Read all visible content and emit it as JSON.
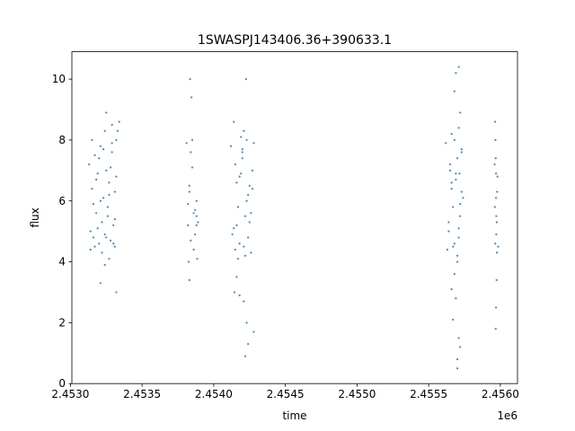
{
  "chart_data": {
    "type": "scatter",
    "title": "1SWASPJ143406.36+390633.1",
    "xlabel": "time",
    "ylabel": "flux",
    "x_offset_label": "1e6",
    "xlim": [
      2453010,
      2456120
    ],
    "ylim": [
      0,
      10.9
    ],
    "grid": false,
    "legend": "none",
    "marker_color": "#1f77b4",
    "x_ticks": [
      {
        "value": 2453000,
        "label": "2.4530"
      },
      {
        "value": 2453500,
        "label": "2.4535"
      },
      {
        "value": 2454000,
        "label": "2.4540"
      },
      {
        "value": 2454500,
        "label": "2.4545"
      },
      {
        "value": 2455000,
        "label": "2.4550"
      },
      {
        "value": 2455500,
        "label": "2.4555"
      },
      {
        "value": 2456000,
        "label": "2.4560"
      }
    ],
    "y_ticks": [
      {
        "value": 0,
        "label": "0"
      },
      {
        "value": 2,
        "label": "2"
      },
      {
        "value": 4,
        "label": "4"
      },
      {
        "value": 6,
        "label": "6"
      },
      {
        "value": 8,
        "label": "8"
      },
      {
        "value": 10,
        "label": "10"
      }
    ],
    "series": [
      {
        "x": [
          2453130,
          2453140,
          2453150,
          2453160,
          2453170,
          2453180,
          2453190,
          2453200,
          2453210,
          2453220,
          2453230,
          2453240,
          2453250,
          2453260,
          2453270,
          2453280,
          2453290,
          2453300,
          2453310,
          2453320,
          2453140,
          2453160,
          2453180,
          2453200,
          2453220,
          2453240,
          2453260,
          2453280,
          2453300,
          2453320,
          2453150,
          2453170,
          2453190,
          2453210,
          2453230,
          2453250,
          2453270,
          2453290,
          2453310,
          2453250,
          2453270,
          2453290,
          2453310,
          2453240,
          2453330,
          2453210,
          2453320,
          2453340,
          2453810,
          2453820,
          2453830,
          2453840,
          2453850,
          2453860,
          2453870,
          2453880,
          2453820,
          2453840,
          2453860,
          2453880,
          2453830,
          2453850,
          2453870,
          2453845,
          2453835,
          2453880,
          2453890,
          2453885,
          2453830,
          2453825,
          2454120,
          2454140,
          2454160,
          2454180,
          2454200,
          2454220,
          2454240,
          2454260,
          2454280,
          2454130,
          2454150,
          2454170,
          2454190,
          2454210,
          2454230,
          2454250,
          2454270,
          2454140,
          2454170,
          2454200,
          2454230,
          2454260,
          2454150,
          2454180,
          2454210,
          2454240,
          2454270,
          2454160,
          2454190,
          2454220,
          2454250,
          2454200,
          2454230,
          2454180,
          2454160,
          2454280,
          2454240,
          2454220,
          2454225,
          2454145,
          2454210,
          2455620,
          2455640,
          2455660,
          2455680,
          2455700,
          2455720,
          2455740,
          2455630,
          2455650,
          2455670,
          2455690,
          2455710,
          2455730,
          2455640,
          2455660,
          2455680,
          2455700,
          2455720,
          2455650,
          2455670,
          2455690,
          2455710,
          2455730,
          2455660,
          2455700,
          2455680,
          2455690,
          2455670,
          2455710,
          2455720,
          2455700,
          2455680,
          2455720,
          2455710,
          2455690,
          2455660,
          2455700,
          2455710,
          2455730,
          2455715,
          2455960,
          2455965,
          2455970,
          2455975,
          2455980,
          2455985,
          2455962,
          2455968,
          2455972,
          2455978,
          2455966,
          2455974,
          2455970,
          2455964,
          2455976,
          2455968,
          2455972,
          2455970
        ],
        "y": [
          7.2,
          5.0,
          6.4,
          4.8,
          7.5,
          5.6,
          6.9,
          4.6,
          7.8,
          5.3,
          6.1,
          4.9,
          7.0,
          5.8,
          6.6,
          4.7,
          7.6,
          5.2,
          6.3,
          8.0,
          4.4,
          5.9,
          6.7,
          7.4,
          4.3,
          8.3,
          5.5,
          7.1,
          4.6,
          6.8,
          8.0,
          4.5,
          5.1,
          6.0,
          7.7,
          4.8,
          6.2,
          8.5,
          5.4,
          8.9,
          4.1,
          7.9,
          4.5,
          3.9,
          8.3,
          3.3,
          3.0,
          8.6,
          7.9,
          5.2,
          6.5,
          4.7,
          7.1,
          5.6,
          4.9,
          6.0,
          5.9,
          7.6,
          4.4,
          5.2,
          3.4,
          8.0,
          5.7,
          9.4,
          10.0,
          5.5,
          5.3,
          4.1,
          6.3,
          4.0,
          7.8,
          5.1,
          6.6,
          4.6,
          7.4,
          5.5,
          6.2,
          4.3,
          7.9,
          4.9,
          7.2,
          5.8,
          6.9,
          4.5,
          8.0,
          5.3,
          6.4,
          8.6,
          4.1,
          7.6,
          6.0,
          5.6,
          4.4,
          6.8,
          8.3,
          4.8,
          7.0,
          5.2,
          8.1,
          4.2,
          6.5,
          7.7,
          2.0,
          2.9,
          3.5,
          1.7,
          1.3,
          0.9,
          10.0,
          3.0,
          2.7,
          7.9,
          5.0,
          6.6,
          4.6,
          7.4,
          5.5,
          6.1,
          4.4,
          7.2,
          5.8,
          6.9,
          4.8,
          7.7,
          5.3,
          6.4,
          8.0,
          4.2,
          5.9,
          7.0,
          4.5,
          6.7,
          5.1,
          6.3,
          8.2,
          4.0,
          3.6,
          2.8,
          2.1,
          1.5,
          1.2,
          0.8,
          9.6,
          8.9,
          10.4,
          10.2,
          3.1,
          0.5,
          8.4,
          7.6,
          6.9,
          7.2,
          4.6,
          6.1,
          5.3,
          6.8,
          4.5,
          5.8,
          7.4,
          4.9,
          6.3,
          8.0,
          3.4,
          2.5,
          8.6,
          4.3,
          1.8,
          5.5,
          6.9
        ]
      }
    ]
  }
}
